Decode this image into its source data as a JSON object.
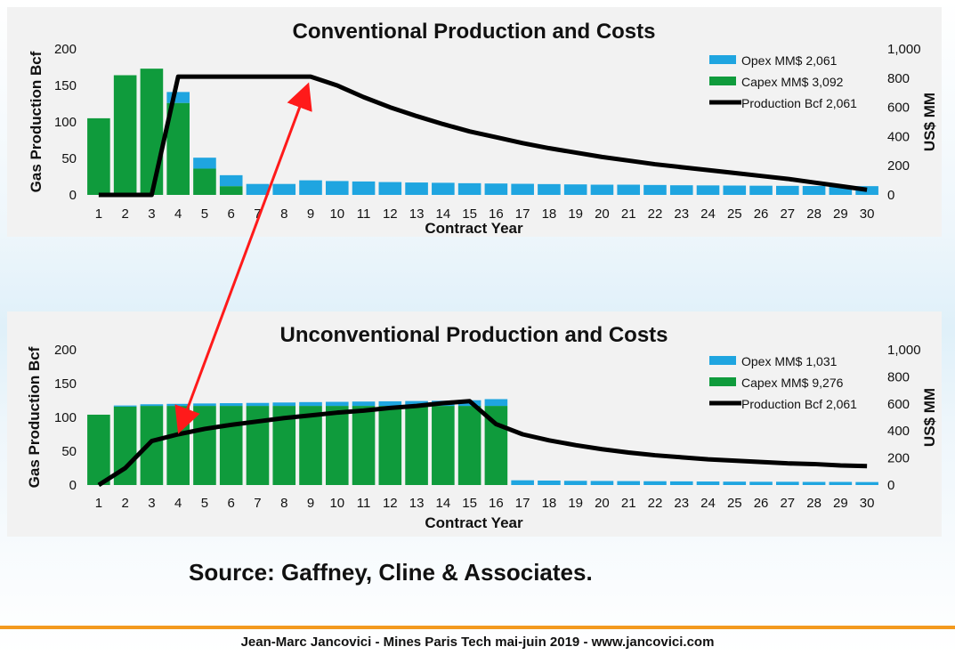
{
  "slide": {
    "source": "Source: Gaffney, Cline & Associates.",
    "footer": "Jean-Marc Jancovici - Mines Paris Tech mai-juin 2019 - www.jancovici.com"
  },
  "colors": {
    "opex": "#1fa5e0",
    "capex": "#0f9b3c",
    "production": "#000000",
    "arrow": "#ff1a1a"
  },
  "chart_data": [
    {
      "type": "bar",
      "title": "Conventional Production and Costs",
      "xlabel": "Contract Year",
      "ylabel": "Gas Production Bcf",
      "y2label": "US$ MM",
      "ylim": [
        0,
        200
      ],
      "y2lim": [
        0,
        1000
      ],
      "yticks": [
        "0",
        "50",
        "100",
        "150",
        "200"
      ],
      "y2ticks": [
        "0",
        "200",
        "400",
        "600",
        "800",
        "1,000"
      ],
      "categories": [
        "1",
        "2",
        "3",
        "4",
        "5",
        "6",
        "7",
        "8",
        "9",
        "10",
        "11",
        "12",
        "13",
        "14",
        "15",
        "16",
        "17",
        "18",
        "19",
        "20",
        "21",
        "22",
        "23",
        "24",
        "25",
        "26",
        "27",
        "28",
        "29",
        "30"
      ],
      "stacked": true,
      "legend_position": "top-right",
      "series": [
        {
          "name": "Capex MM$ 3,092",
          "kind": "bar",
          "axis": "right",
          "values": [
            525,
            820,
            865,
            630,
            180,
            60,
            0,
            0,
            0,
            0,
            0,
            0,
            0,
            0,
            0,
            0,
            0,
            0,
            0,
            0,
            0,
            0,
            0,
            0,
            0,
            0,
            0,
            0,
            0,
            0
          ]
        },
        {
          "name": "Opex MM$ 2,061",
          "kind": "bar",
          "axis": "right",
          "values": [
            0,
            0,
            0,
            75,
            75,
            75,
            75,
            75,
            100,
            95,
            92,
            88,
            85,
            83,
            80,
            78,
            76,
            74,
            72,
            70,
            70,
            68,
            66,
            65,
            64,
            63,
            62,
            61,
            60,
            60
          ]
        },
        {
          "name": "Production Bcf 2,061",
          "kind": "line",
          "axis": "left",
          "values": [
            0,
            0,
            0,
            162,
            162,
            162,
            162,
            162,
            162,
            150,
            134,
            120,
            108,
            97,
            87,
            79,
            71,
            64,
            58,
            52,
            47,
            42,
            38,
            34,
            30,
            26,
            22,
            17,
            12,
            7
          ]
        }
      ]
    },
    {
      "type": "bar",
      "title": "Unconventional Production and Costs",
      "xlabel": "Contract Year",
      "ylabel": "Gas Production Bcf",
      "y2label": "US$ MM",
      "ylim": [
        0,
        200
      ],
      "y2lim": [
        0,
        1000
      ],
      "yticks": [
        "0",
        "50",
        "100",
        "150",
        "200"
      ],
      "y2ticks": [
        "0",
        "200",
        "400",
        "600",
        "800",
        "1,000"
      ],
      "categories": [
        "1",
        "2",
        "3",
        "4",
        "5",
        "6",
        "7",
        "8",
        "9",
        "10",
        "11",
        "12",
        "13",
        "14",
        "15",
        "16",
        "17",
        "18",
        "19",
        "20",
        "21",
        "22",
        "23",
        "24",
        "25",
        "26",
        "27",
        "28",
        "29",
        "30"
      ],
      "stacked": true,
      "legend_position": "top-right",
      "series": [
        {
          "name": "Capex MM$ 9,276",
          "kind": "bar",
          "axis": "right",
          "values": [
            520,
            580,
            585,
            585,
            585,
            585,
            585,
            585,
            585,
            585,
            585,
            585,
            585,
            585,
            585,
            585,
            0,
            0,
            0,
            0,
            0,
            0,
            0,
            0,
            0,
            0,
            0,
            0,
            0,
            0
          ]
        },
        {
          "name": "Opex MM$ 1,031",
          "kind": "bar",
          "axis": "right",
          "values": [
            0,
            8,
            12,
            15,
            18,
            20,
            22,
            25,
            28,
            30,
            32,
            34,
            36,
            38,
            42,
            50,
            35,
            33,
            31,
            30,
            29,
            28,
            27,
            26,
            25,
            24,
            24,
            23,
            23,
            22
          ]
        },
        {
          "name": "Production Bcf 2,061",
          "kind": "line",
          "axis": "left",
          "values": [
            0,
            25,
            65,
            75,
            83,
            89,
            94,
            99,
            103,
            107,
            110,
            114,
            117,
            121,
            124,
            90,
            75,
            66,
            59,
            53,
            48,
            44,
            41,
            38,
            36,
            34,
            32,
            31,
            29,
            28
          ]
        }
      ]
    }
  ]
}
